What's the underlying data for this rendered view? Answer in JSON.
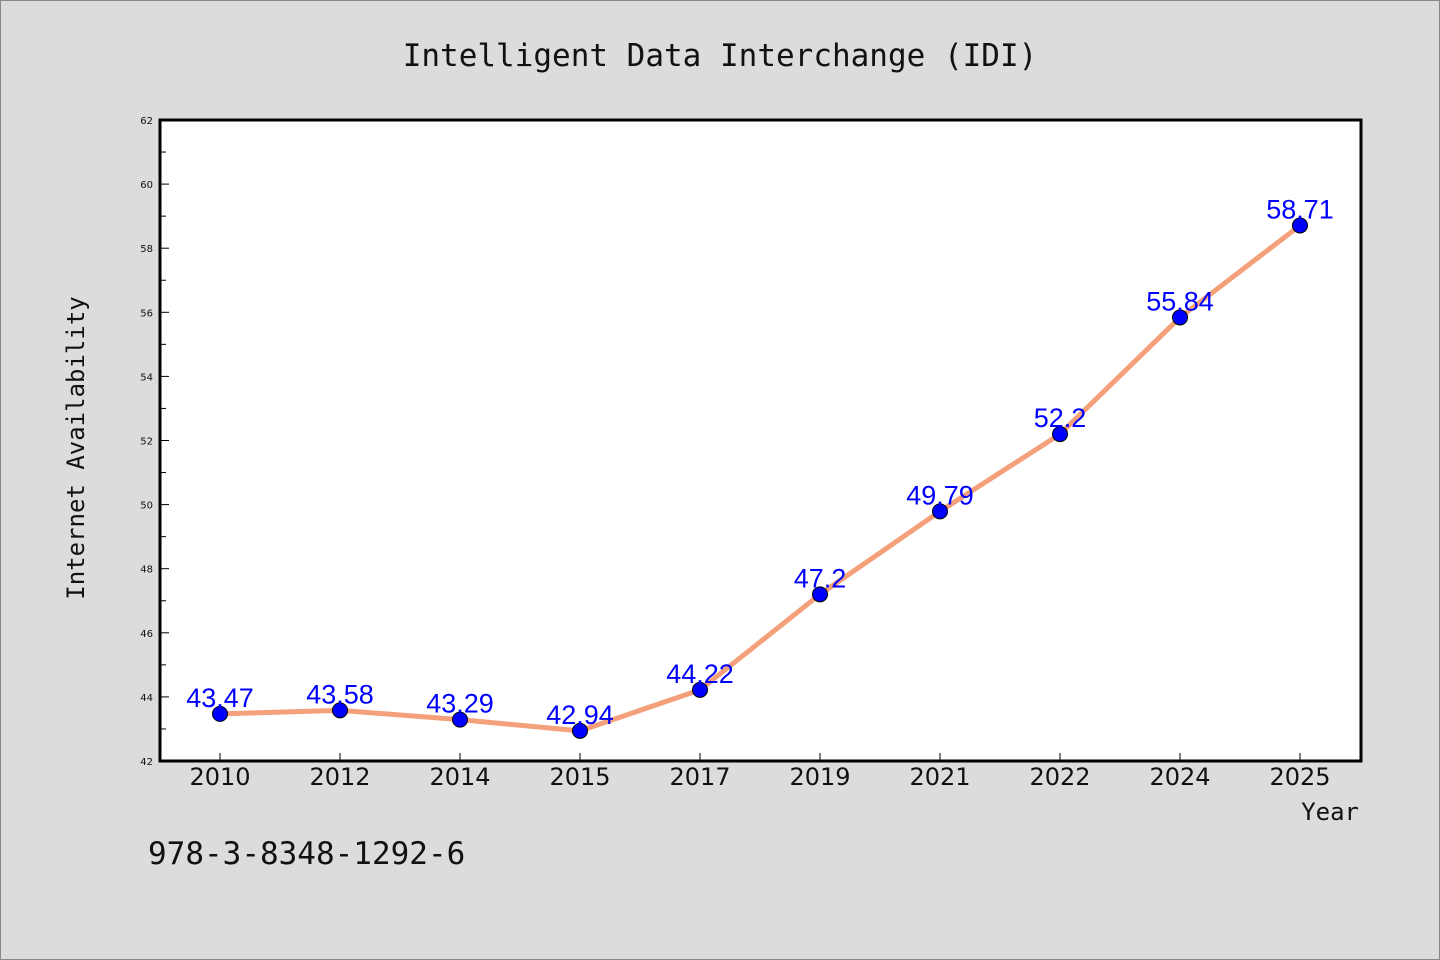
{
  "chart_data": {
    "type": "line",
    "title": "Intelligent Data Interchange (IDI)",
    "xlabel": "Year",
    "ylabel": "Internet Availability",
    "categories": [
      "2010",
      "2012",
      "2014",
      "2015",
      "2017",
      "2019",
      "2021",
      "2022",
      "2024",
      "2025"
    ],
    "series": [
      {
        "values": [
          43.47,
          43.58,
          43.29,
          42.94,
          44.22,
          47.2,
          49.79,
          52.2,
          55.84,
          58.71
        ],
        "labels": [
          "43.47",
          "43.58",
          "43.29",
          "42.94",
          "44.22",
          "47.2",
          "49.79",
          "52.2",
          "55.84",
          "58.71"
        ],
        "line_color": "#f4a07a",
        "marker_color": "#0000ff"
      }
    ],
    "ylim": [
      42,
      62
    ],
    "yticks": [
      "42",
      "44",
      "46",
      "48",
      "50",
      "52",
      "54",
      "56",
      "58",
      "60",
      "62"
    ],
    "grid": false,
    "legend": "none"
  },
  "footer": {
    "isbn": "978-3-8348-1292-6"
  }
}
